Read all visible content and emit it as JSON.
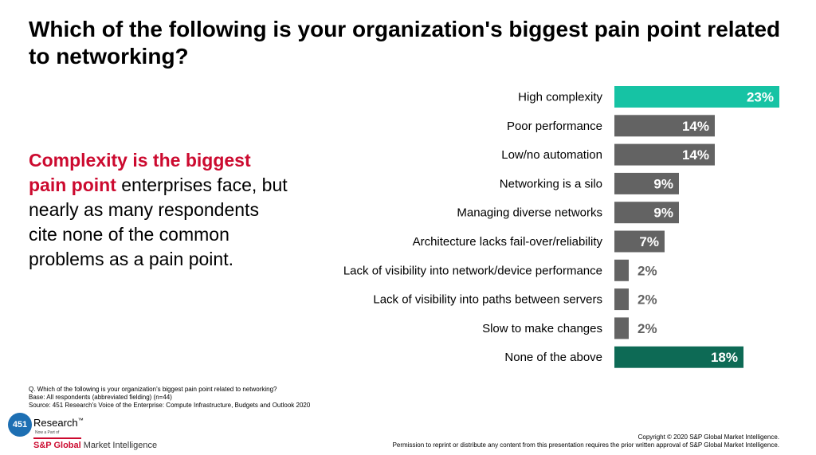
{
  "title": "Which of the following is your organization's biggest pain point related to networking?",
  "callout": {
    "highlight": "Complexity is the biggest pain point",
    "rest": " enterprises face, but nearly as many respondents cite none of the common problems as a pain point."
  },
  "chart_data": {
    "type": "bar",
    "orientation": "horizontal",
    "categories": [
      "High complexity",
      "Poor performance",
      "Low/no automation",
      "Networking is a silo",
      "Managing diverse networks",
      "Architecture lacks fail-over/reliability",
      "Lack of visibility into network/device performance",
      "Lack of visibility into paths between servers",
      "Slow to make changes",
      "None of the above"
    ],
    "values": [
      23,
      14,
      14,
      9,
      9,
      7,
      2,
      2,
      2,
      18
    ],
    "labels": [
      "23%",
      "14%",
      "14%",
      "9%",
      "9%",
      "7%",
      "2%",
      "2%",
      "2%",
      "18%"
    ],
    "colors": [
      "#16c3a4",
      "#636363",
      "#636363",
      "#636363",
      "#636363",
      "#636363",
      "#636363",
      "#636363",
      "#636363",
      "#0d6a55"
    ],
    "unit": "%"
  },
  "footnote": {
    "question": "Q. Which of the following is your organization's biggest pain point related to networking?",
    "base": "Base: All respondents (abbreviated fielding) (n=44)",
    "source": "Source: 451 Research's Voice of the Enterprise: Compute Infrastructure, Budgets and Outlook 2020"
  },
  "logo": {
    "badge": "451",
    "research": "Research",
    "sub": "Now a Part of",
    "spg_bold": "S&P Global",
    "spg_rest": " Market Intelligence"
  },
  "copyright": {
    "line1": "Copyright © 2020 S&P Global Market Intelligence.",
    "line2": "Permission to reprint or distribute any content from this presentation requires the prior written approval of S&P Global Market Intelligence."
  }
}
